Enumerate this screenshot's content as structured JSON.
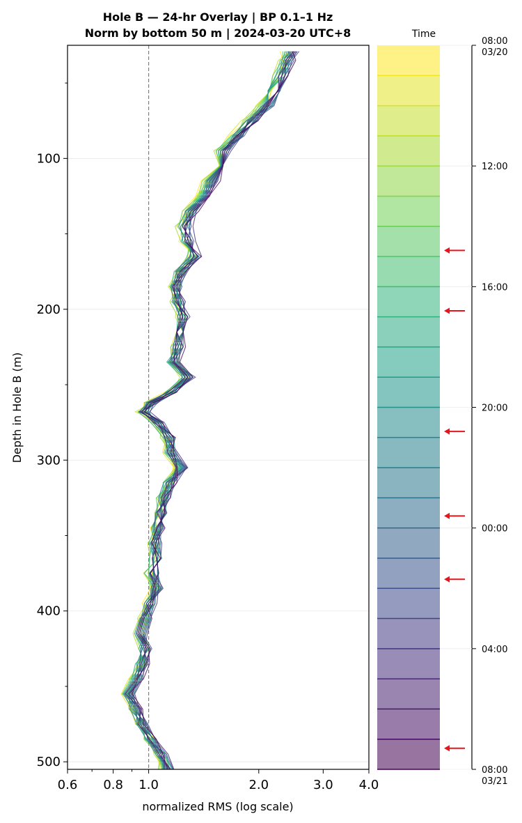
{
  "chart_data": {
    "type": "line",
    "title": "Hole B — 24-hr Overlay  |  BP 0.1–1 Hz",
    "subtitle": "Norm by bottom 50 m  |  2024-03-20 UTC+8",
    "xlabel": "normalized RMS  (log scale)",
    "ylabel": "Depth in Hole B (m)",
    "x_scale": "log",
    "xlim": [
      0.6,
      4.0
    ],
    "ylim": [
      505,
      25
    ],
    "x_ticks": [
      "0.6",
      "0.8",
      "1.0",
      "2.0",
      "3.0",
      "4.0"
    ],
    "x_tick_values": [
      0.6,
      0.8,
      1.0,
      2.0,
      3.0,
      4.0
    ],
    "y_ticks": [
      "100",
      "200",
      "300",
      "400",
      "500"
    ],
    "y_tick_values": [
      100,
      200,
      300,
      400,
      500
    ],
    "reference_line_x": 1.0,
    "grid": true,
    "series_count": 24,
    "series_hour_start": 8,
    "colormap": "viridis",
    "depth": [
      29,
      35,
      45,
      55,
      65,
      75,
      85,
      95,
      105,
      115,
      125,
      135,
      145,
      155,
      165,
      175,
      185,
      195,
      205,
      215,
      225,
      235,
      245,
      255,
      262,
      268,
      275,
      285,
      295,
      305,
      315,
      325,
      335,
      345,
      355,
      365,
      375,
      385,
      395,
      405,
      415,
      425,
      435,
      445,
      455,
      465,
      475,
      485,
      495,
      505
    ],
    "mean_profile": [
      2.45,
      2.4,
      2.3,
      2.2,
      2.1,
      1.9,
      1.75,
      1.6,
      1.55,
      1.48,
      1.42,
      1.3,
      1.25,
      1.28,
      1.33,
      1.22,
      1.18,
      1.2,
      1.24,
      1.22,
      1.2,
      1.17,
      1.28,
      1.15,
      1.02,
      0.97,
      1.06,
      1.13,
      1.15,
      1.22,
      1.14,
      1.1,
      1.08,
      1.06,
      1.04,
      1.05,
      1.02,
      1.05,
      1.01,
      0.98,
      0.95,
      0.98,
      0.96,
      0.92,
      0.88,
      0.92,
      0.96,
      1.02,
      1.08,
      1.12
    ]
  },
  "colorbar": {
    "title": "Time",
    "ticks": [
      {
        "label": "08:00",
        "label2": "03/20",
        "hour": 0
      },
      {
        "label": "12:00",
        "hour": 4
      },
      {
        "label": "16:00",
        "hour": 8
      },
      {
        "label": "20:00",
        "hour": 12
      },
      {
        "label": "00:00",
        "hour": 16
      },
      {
        "label": "04:00",
        "hour": 20
      },
      {
        "label": "08:00",
        "label2": "03/21",
        "hour": 24
      }
    ],
    "arrow_hours": [
      6.8,
      8.8,
      12.8,
      15.6,
      17.7,
      23.3
    ],
    "arrow_color": "#e8141c"
  }
}
